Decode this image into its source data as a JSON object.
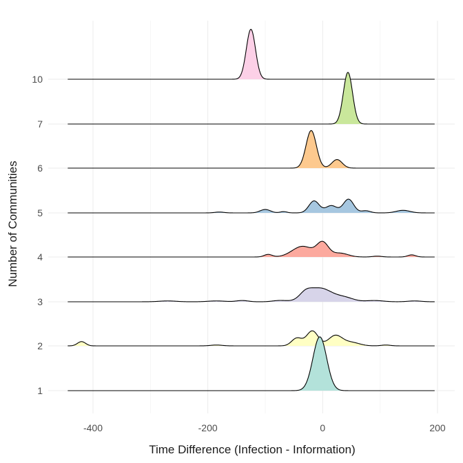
{
  "chart_data": {
    "type": "area",
    "subtype": "ridgeline",
    "xlabel": "Time Difference (Infection - Information)",
    "ylabel": "Number of Communities",
    "xlim": [
      -450,
      200
    ],
    "x_ticks": [
      -400,
      -200,
      0,
      200
    ],
    "x_tick_labels": [
      "-400",
      "-200",
      "0",
      "200"
    ],
    "x_minor_ticks": [
      -300,
      -100,
      100
    ],
    "grid": true,
    "legend": "none",
    "series": [
      {
        "name": "1",
        "color": "#B3E2DA",
        "components": [
          {
            "mu": -5,
            "sigma": 12,
            "h": 1.26
          }
        ]
      },
      {
        "name": "2",
        "color": "#FFFFC4",
        "components": [
          {
            "mu": -420,
            "sigma": 7,
            "h": 0.1
          },
          {
            "mu": -185,
            "sigma": 10,
            "h": 0.02
          },
          {
            "mu": -45,
            "sigma": 9,
            "h": 0.18
          },
          {
            "mu": -18,
            "sigma": 10,
            "h": 0.35
          },
          {
            "mu": 22,
            "sigma": 12,
            "h": 0.24
          },
          {
            "mu": 50,
            "sigma": 14,
            "h": 0.08
          },
          {
            "mu": 110,
            "sigma": 8,
            "h": 0.02
          }
        ]
      },
      {
        "name": "3",
        "color": "#D7D4E9",
        "components": [
          {
            "mu": -270,
            "sigma": 15,
            "h": 0.02
          },
          {
            "mu": -185,
            "sigma": 15,
            "h": 0.02
          },
          {
            "mu": -140,
            "sigma": 10,
            "h": 0.03
          },
          {
            "mu": -75,
            "sigma": 12,
            "h": 0.03
          },
          {
            "mu": -30,
            "sigma": 10,
            "h": 0.12
          },
          {
            "mu": -5,
            "sigma": 22,
            "h": 0.32
          },
          {
            "mu": 40,
            "sigma": 15,
            "h": 0.08
          },
          {
            "mu": 90,
            "sigma": 15,
            "h": 0.03
          },
          {
            "mu": 160,
            "sigma": 12,
            "h": 0.02
          }
        ]
      },
      {
        "name": "4",
        "color": "#FCA99E",
        "components": [
          {
            "mu": -95,
            "sigma": 7,
            "h": 0.06
          },
          {
            "mu": -35,
            "sigma": 18,
            "h": 0.25
          },
          {
            "mu": 0,
            "sigma": 10,
            "h": 0.32
          },
          {
            "mu": 30,
            "sigma": 14,
            "h": 0.09
          },
          {
            "mu": 95,
            "sigma": 8,
            "h": 0.02
          },
          {
            "mu": 155,
            "sigma": 7,
            "h": 0.05
          }
        ]
      },
      {
        "name": "5",
        "color": "#A6C7E0",
        "components": [
          {
            "mu": -180,
            "sigma": 8,
            "h": 0.02
          },
          {
            "mu": -100,
            "sigma": 9,
            "h": 0.08
          },
          {
            "mu": -68,
            "sigma": 6,
            "h": 0.03
          },
          {
            "mu": -15,
            "sigma": 9,
            "h": 0.28
          },
          {
            "mu": 15,
            "sigma": 10,
            "h": 0.17
          },
          {
            "mu": 45,
            "sigma": 9,
            "h": 0.32
          },
          {
            "mu": 75,
            "sigma": 8,
            "h": 0.05
          },
          {
            "mu": 140,
            "sigma": 12,
            "h": 0.06
          }
        ]
      },
      {
        "name": "6",
        "color": "#FDC98E",
        "components": [
          {
            "mu": -20,
            "sigma": 9,
            "h": 0.88
          },
          {
            "mu": 25,
            "sigma": 9,
            "h": 0.2
          }
        ]
      },
      {
        "name": "7",
        "color": "#C9E79B",
        "components": [
          {
            "mu": 44,
            "sigma": 8,
            "h": 1.21
          }
        ]
      },
      {
        "name": "10",
        "color": "#FCD0E7",
        "components": [
          {
            "mu": -125,
            "sigma": 8,
            "h": 1.17
          }
        ]
      }
    ]
  }
}
